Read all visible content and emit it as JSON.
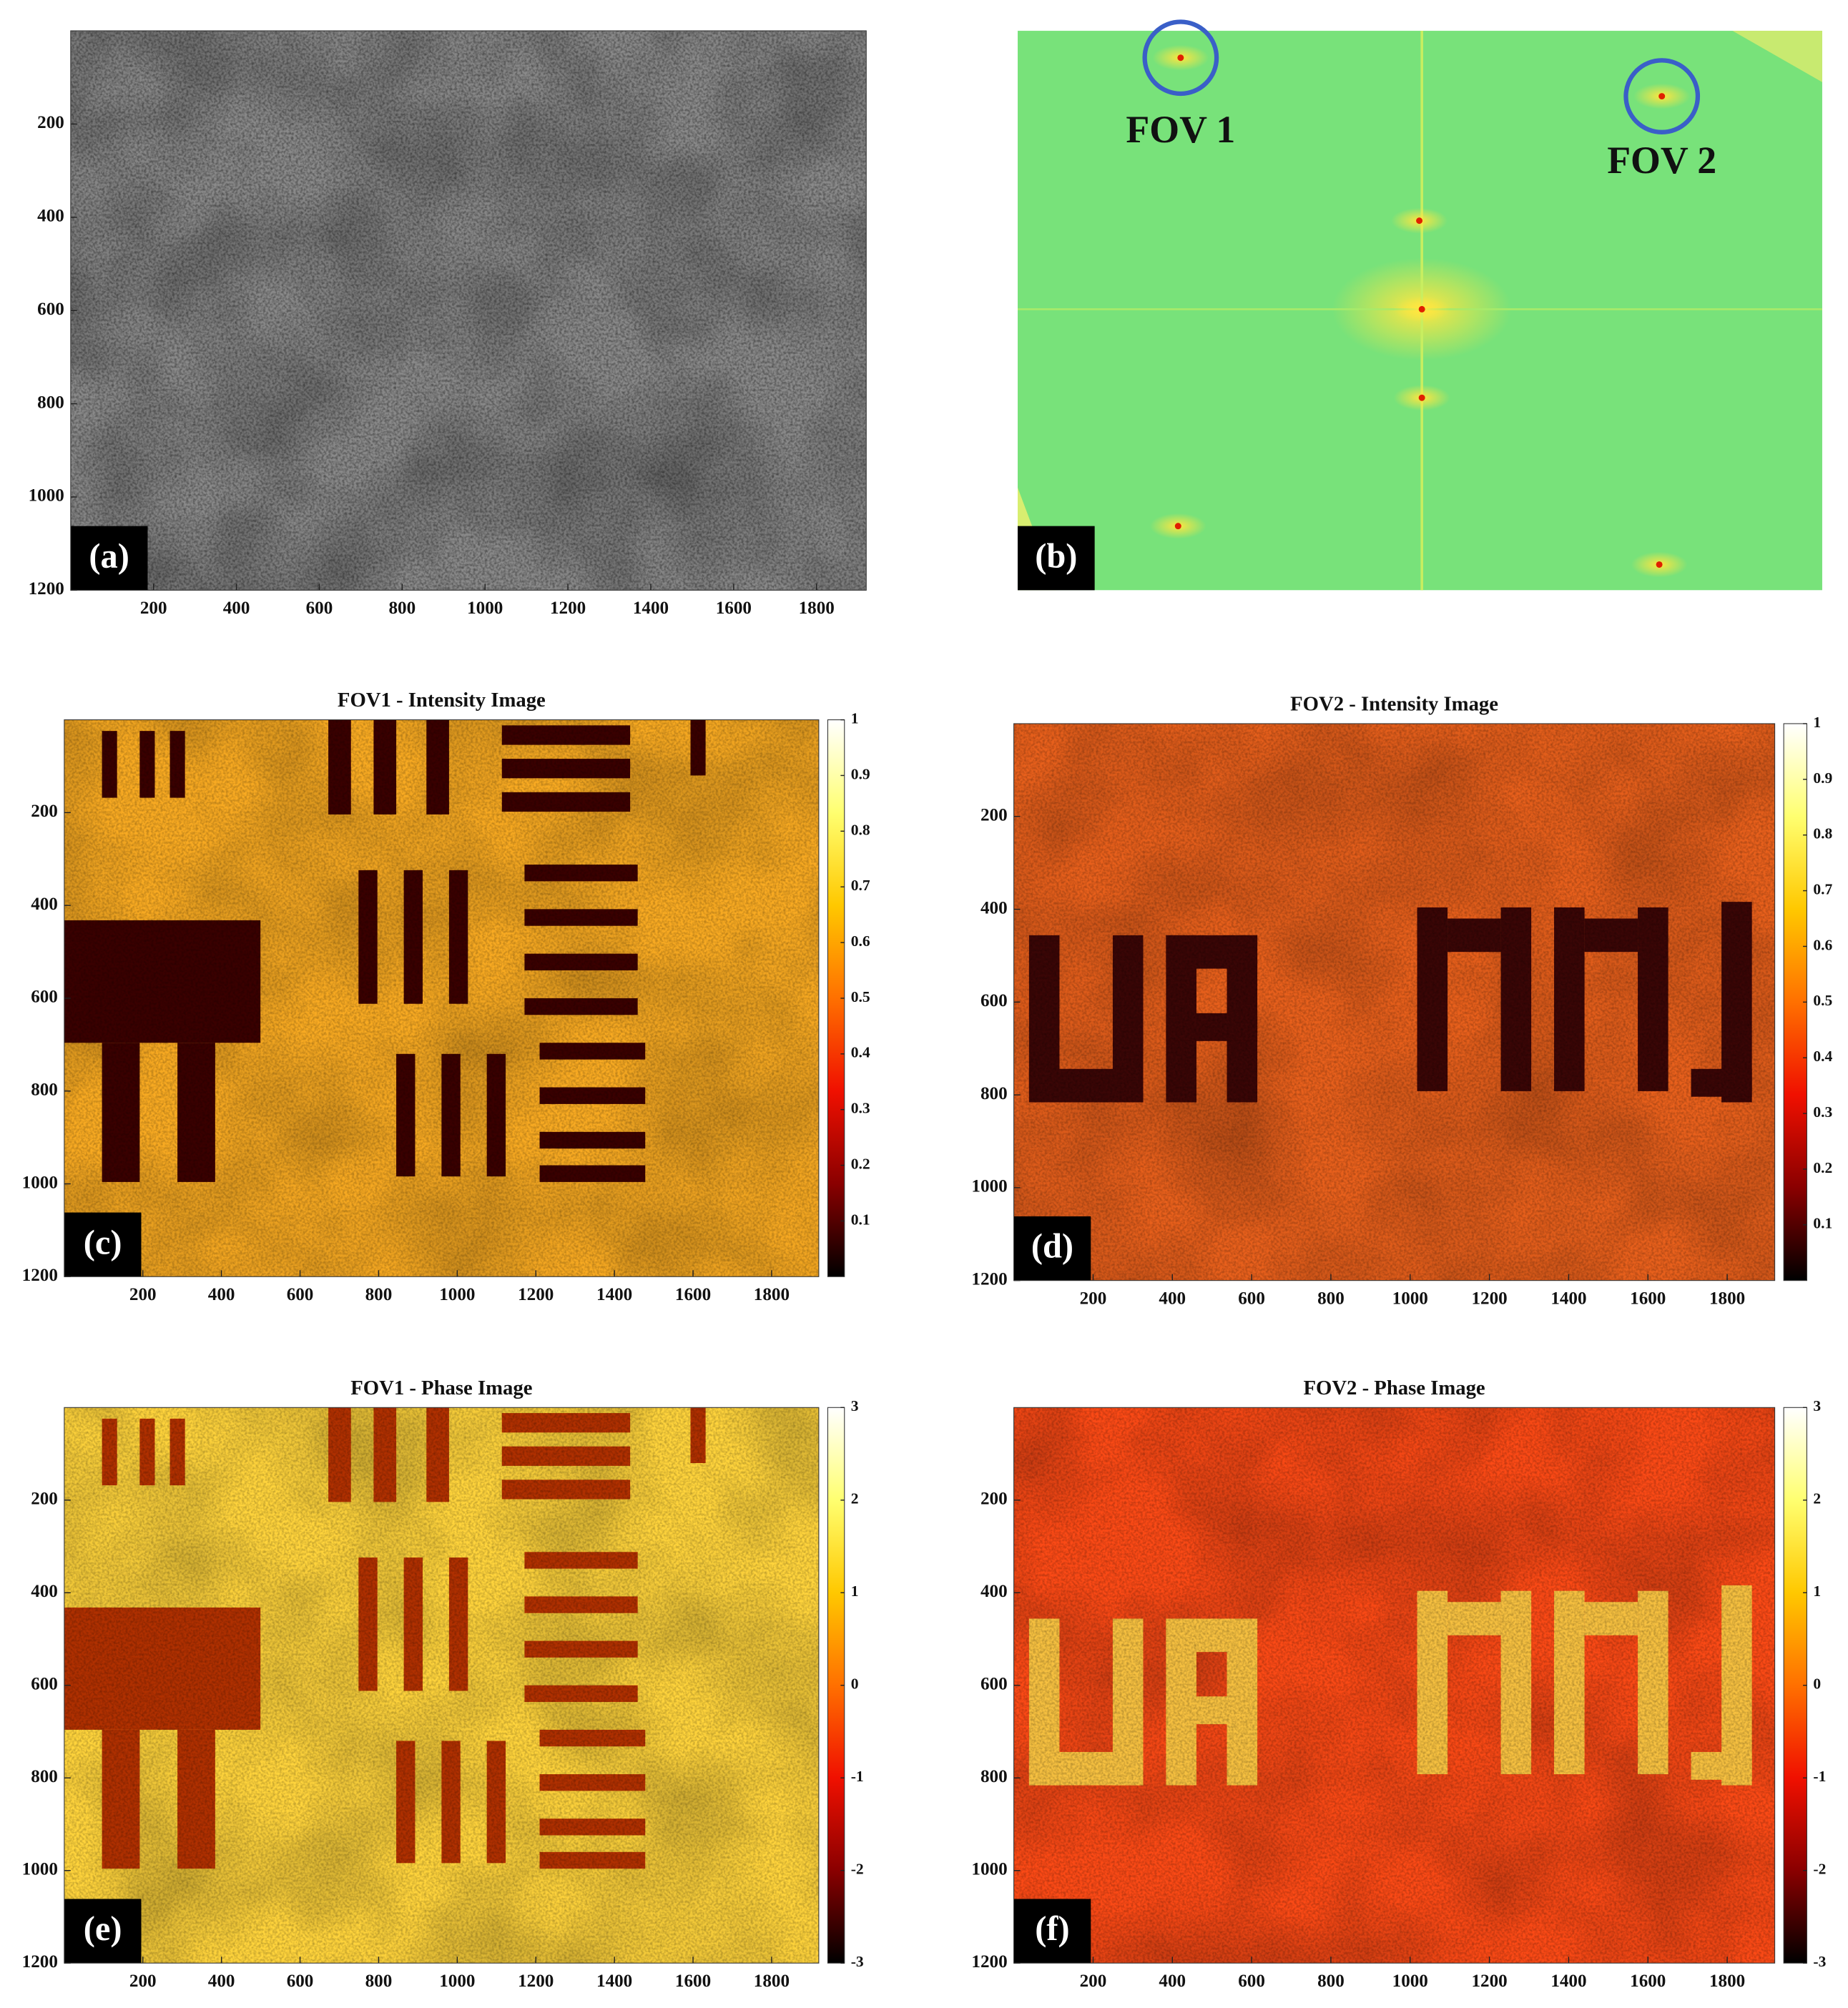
{
  "chart_data": [
    {
      "type": "image",
      "label": "(a)",
      "xlim": [
        0,
        1920
      ],
      "ylim": [
        0,
        1200
      ],
      "xticks": [
        200,
        400,
        600,
        800,
        1000,
        1200,
        1400,
        1600,
        1800
      ],
      "yticks": [
        200,
        400,
        600,
        800,
        1000,
        1200
      ]
    },
    {
      "type": "spectrum",
      "label": "(b)",
      "annotations": [
        "FOV 1",
        "FOV 2"
      ]
    },
    {
      "type": "heatmap",
      "label": "(c)",
      "title": "FOV1 - Intensity Image",
      "xlim": [
        0,
        1920
      ],
      "ylim": [
        0,
        1200
      ],
      "xticks": [
        200,
        400,
        600,
        800,
        1000,
        1200,
        1400,
        1600,
        1800
      ],
      "yticks": [
        200,
        400,
        600,
        800,
        1000,
        1200
      ],
      "clim": [
        0,
        1
      ],
      "cticks": [
        0.1,
        0.2,
        0.3,
        0.4,
        0.5,
        0.6,
        0.7,
        0.8,
        0.9,
        1
      ],
      "colormap": [
        "#000000",
        "#8a0000",
        "#f01000",
        "#ff7000",
        "#ffc800",
        "#ffff70",
        "#ffffff"
      ]
    },
    {
      "type": "heatmap",
      "label": "(d)",
      "title": "FOV2 - Intensity Image",
      "xlim": [
        0,
        1920
      ],
      "ylim": [
        0,
        1200
      ],
      "xticks": [
        200,
        400,
        600,
        800,
        1000,
        1200,
        1400,
        1600,
        1800
      ],
      "yticks": [
        200,
        400,
        600,
        800,
        1000,
        1200
      ],
      "clim": [
        0,
        1
      ],
      "cticks": [
        0.1,
        0.2,
        0.3,
        0.4,
        0.5,
        0.6,
        0.7,
        0.8,
        0.9,
        1
      ],
      "colormap": [
        "#000000",
        "#8a0000",
        "#f01000",
        "#ff7000",
        "#ffc800",
        "#ffff70",
        "#ffffff"
      ]
    },
    {
      "type": "heatmap",
      "label": "(e)",
      "title": "FOV1 - Phase Image",
      "xlim": [
        0,
        1920
      ],
      "ylim": [
        0,
        1200
      ],
      "xticks": [
        200,
        400,
        600,
        800,
        1000,
        1200,
        1400,
        1600,
        1800
      ],
      "yticks": [
        200,
        400,
        600,
        800,
        1000,
        1200
      ],
      "clim": [
        -3,
        3
      ],
      "cticks": [
        -3,
        -2,
        -1,
        0,
        1,
        2,
        3
      ],
      "colormap": [
        "#000000",
        "#8a0000",
        "#f01000",
        "#ff7000",
        "#ffc800",
        "#ffff70",
        "#ffffff"
      ]
    },
    {
      "type": "heatmap",
      "label": "(f)",
      "title": "FOV2 - Phase Image",
      "xlim": [
        0,
        1920
      ],
      "ylim": [
        0,
        1200
      ],
      "xticks": [
        200,
        400,
        600,
        800,
        1000,
        1200,
        1400,
        1600,
        1800
      ],
      "yticks": [
        200,
        400,
        600,
        800,
        1000,
        1200
      ],
      "clim": [
        -3,
        3
      ],
      "cticks": [
        -3,
        -2,
        -1,
        0,
        1,
        2,
        3
      ],
      "colormap": [
        "#000000",
        "#8a0000",
        "#f01000",
        "#ff7000",
        "#ffc800",
        "#ffff70",
        "#ffffff"
      ]
    }
  ]
}
